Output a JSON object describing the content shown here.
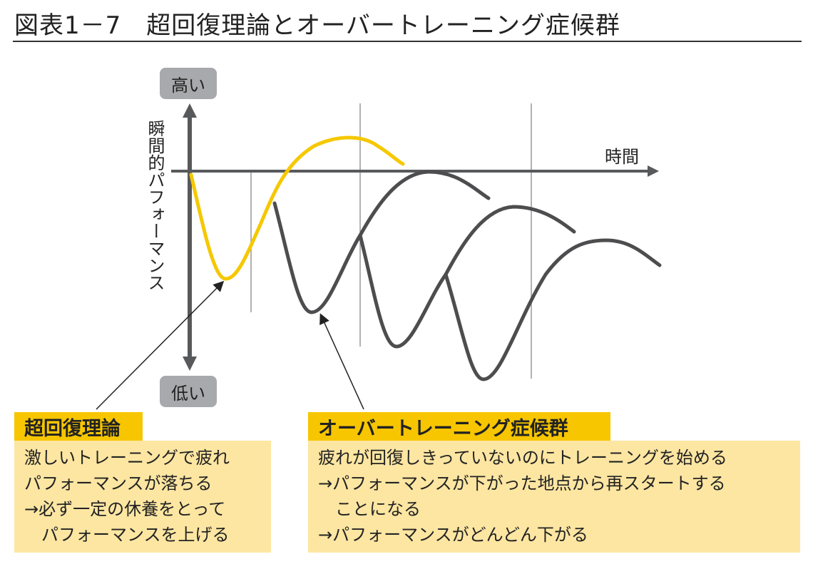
{
  "title": "図表1－7　超回復理論とオーバートレーニング症候群",
  "diagram": {
    "y_axis_label": "瞬間的パフォーマンス",
    "y_high": "高い",
    "y_low": "低い",
    "x_axis_label": "時間",
    "colors": {
      "supercompensation": "#f5c800",
      "overtraining": "#4d4d4f",
      "axis": "#58595b",
      "box_header": "#f7c600",
      "box_body": "#fde6a2"
    }
  },
  "boxes": [
    {
      "heading": "超回復理論",
      "lines": [
        "激しいトレーニングで疲れ",
        "パフォーマンスが落ちる",
        "→必ず一定の休養をとって",
        "　パフォーマンスを上げる"
      ]
    },
    {
      "heading": "オーバートレーニング症候群",
      "lines": [
        "疲れが回復しきっていないのにトレーニングを始める",
        "→パフォーマンスが下がった地点から再スタートする",
        "　ことになる",
        "→パフォーマンスがどんどん下がる"
      ]
    }
  ]
}
